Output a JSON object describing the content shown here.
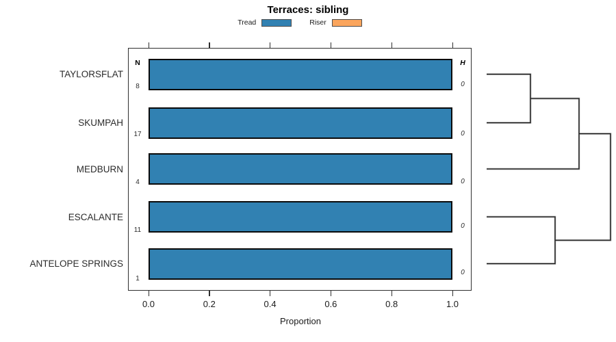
{
  "title": "Terraces: sibling",
  "legend": {
    "items": [
      {
        "label": "Tread",
        "color": "#3181B2"
      },
      {
        "label": "Riser",
        "color": "#FBA55D"
      }
    ]
  },
  "chart_data": {
    "type": "bar",
    "orientation": "horizontal",
    "title": "Terraces: sibling",
    "xlabel": "Proportion",
    "xlim": [
      0,
      1
    ],
    "x_ticks": [
      "0.0",
      "0.2",
      "0.4",
      "0.6",
      "0.8",
      "1.0"
    ],
    "grid": false,
    "legend_position": "top",
    "categories": [
      "TAYLORSFLAT",
      "SKUMPAH",
      "MEDBURN",
      "ESCALANTE",
      "ANTELOPE SPRINGS"
    ],
    "series": [
      {
        "name": "Tread",
        "color": "#3181B2",
        "values": [
          1.0,
          1.0,
          1.0,
          1.0,
          1.0
        ]
      },
      {
        "name": "Riser",
        "color": "#FBA55D",
        "values": [
          0.0,
          0.0,
          0.0,
          0.0,
          0.0
        ]
      }
    ],
    "annotations": {
      "n": {
        "header": "N",
        "values": [
          8,
          17,
          4,
          11,
          1
        ]
      },
      "h": {
        "header": "H",
        "values": [
          0,
          0,
          0,
          0,
          0
        ]
      }
    },
    "dendrogram": {
      "side": "right",
      "leaf_order": [
        "TAYLORSFLAT",
        "SKUMPAH",
        "MEDBURN",
        "ESCALANTE",
        "ANTELOPE SPRINGS"
      ],
      "merges": [
        {
          "join": [
            "TAYLORSFLAT",
            "SKUMPAH"
          ]
        },
        {
          "join": [
            "TAYLORSFLAT+SKUMPAH",
            "MEDBURN"
          ]
        },
        {
          "join": [
            "ESCALANTE",
            "ANTELOPE SPRINGS"
          ]
        },
        {
          "join": [
            "TAYLORSFLAT+SKUMPAH+MEDBURN",
            "ESCALANTE+ANTELOPE SPRINGS"
          ]
        }
      ]
    }
  }
}
